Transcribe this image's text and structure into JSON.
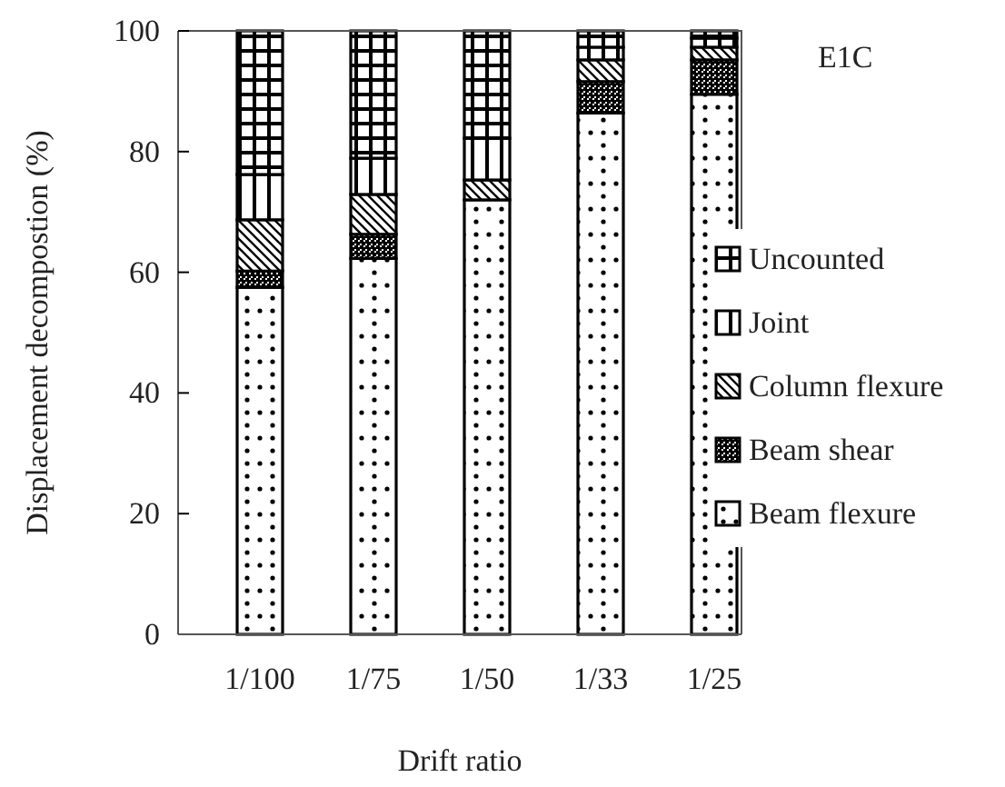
{
  "chart_data": {
    "type": "bar",
    "stacked": true,
    "xlabel": "Drift ratio",
    "ylabel": "Displacement decompostion (%)",
    "categories": [
      "1/100",
      "1/75",
      "1/50",
      "1/33",
      "1/25"
    ],
    "series": [
      {
        "name": "Beam flexure",
        "color": "#000000",
        "values": [
          57.5,
          62.3,
          72,
          86.4,
          89.5
        ]
      },
      {
        "name": "Beam shear",
        "color": "#000000",
        "values": [
          2.7,
          4.0,
          0,
          5.2,
          5.7
        ]
      },
      {
        "name": "Column flexure",
        "color": "#000000",
        "values": [
          8.5,
          6.6,
          3.3,
          3.6,
          2.1
        ]
      },
      {
        "name": "Joint",
        "color": "#000000",
        "values": [
          7.5,
          6.0,
          6.9,
          2.1,
          1.5
        ]
      },
      {
        "name": "Uncounted",
        "color": "#000000",
        "values": [
          23.8,
          21.1,
          17.8,
          2.7,
          1.2
        ]
      }
    ],
    "ylim": [
      0,
      100
    ],
    "yticks": [
      0,
      20,
      40,
      60,
      80,
      100
    ],
    "grid": false,
    "legend": "right",
    "annotations": [
      "E1C"
    ]
  }
}
